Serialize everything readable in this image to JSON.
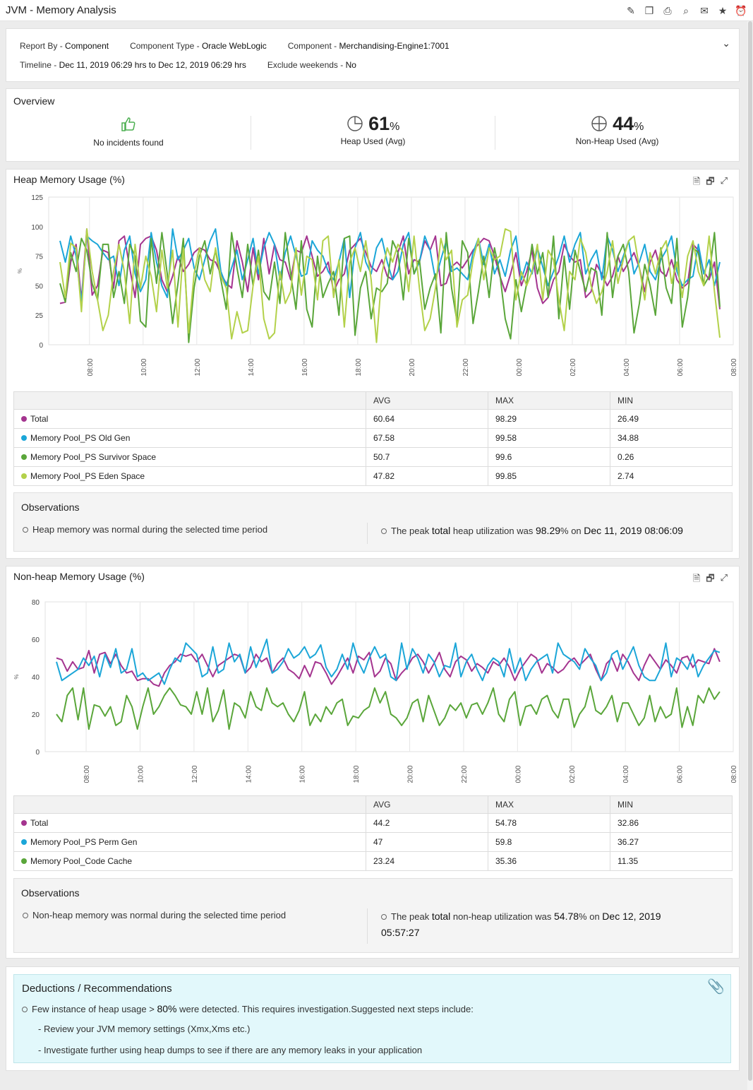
{
  "app": {
    "title": "JVM - Memory Analysis"
  },
  "toolbar_icons": [
    "edit-report-icon",
    "copy-report-icon",
    "pdf-export-icon",
    "search-report-icon",
    "mail-icon",
    "favorite-star-icon",
    "schedule-alarm-icon"
  ],
  "report": {
    "report_by_label": "Report By -",
    "report_by": "Component",
    "type_label": "Component Type -",
    "type": "Oracle WebLogic",
    "component_label": "Component -",
    "component": "Merchandising-Engine1:7001",
    "timeline_label": "Timeline -",
    "timeline": "Dec 11, 2019 06:29 hrs to Dec 12, 2019 06:29 hrs",
    "exclude_label": "Exclude weekends -",
    "exclude": "No"
  },
  "overview": {
    "title": "Overview",
    "incidents": "No incidents found",
    "heap_value": "61",
    "heap_unit": "%",
    "heap_label": "Heap Used (Avg)",
    "nonheap_value": "44",
    "nonheap_unit": "%",
    "nonheap_label": "Non-Heap Used (Avg)"
  },
  "colors": {
    "total": "#a4348f",
    "old_gen": "#1ba6d8",
    "survivor": "#5aa63a",
    "eden": "#b3d14a"
  },
  "heap": {
    "title": "Heap Memory Usage (%)",
    "headers": [
      "",
      "AVG",
      "MAX",
      "MIN"
    ],
    "rows": [
      {
        "name": "Total",
        "avg": "60.64",
        "max": "98.29",
        "min": "26.49"
      },
      {
        "name": "Memory Pool_PS Old Gen",
        "avg": "67.58",
        "max": "99.58",
        "min": "34.88"
      },
      {
        "name": "Memory Pool_PS Survivor Space",
        "avg": "50.7",
        "max": "99.6",
        "min": "0.26"
      },
      {
        "name": "Memory Pool_PS Eden Space",
        "avg": "47.82",
        "max": "99.85",
        "min": "2.74"
      }
    ],
    "obs_title": "Observations",
    "obs_left": "Heap memory was normal during the selected time period",
    "obs_r1": "The peak ",
    "obs_r2": "total",
    "obs_r3": " heap utilization was ",
    "obs_r4": "98.29",
    "obs_r5": "%",
    "obs_r6": " on ",
    "obs_r7": "Dec 11, 2019 08:06:09"
  },
  "nonheap": {
    "title": "Non-heap Memory Usage (%)",
    "headers": [
      "",
      "AVG",
      "MAX",
      "MIN"
    ],
    "rows": [
      {
        "name": "Total",
        "avg": "44.2",
        "max": "54.78",
        "min": "32.86"
      },
      {
        "name": "Memory Pool_PS Perm Gen",
        "avg": "47",
        "max": "59.8",
        "min": "36.27"
      },
      {
        "name": "Memory Pool_Code Cache",
        "avg": "23.24",
        "max": "35.36",
        "min": "11.35"
      }
    ],
    "obs_title": "Observations",
    "obs_left": "Non-heap memory was normal during the selected time period",
    "obs_r1": "The peak ",
    "obs_r2": "total",
    "obs_r3": " non-heap utilization was ",
    "obs_r4": "54.78",
    "obs_r5": "%",
    "obs_r6": " on ",
    "obs_r7": "Dec 12, 2019",
    "obs_r8": "05:57:27"
  },
  "deductions": {
    "title": "Deductions / Recommendations",
    "l1a": "Few instance of heap usage > ",
    "l1b": "80%",
    "l1c": " were detected. This requires investigation.Suggested next steps include:",
    "l2": "- Review your JVM memory settings (Xmx,Xms etc.)",
    "l3": "- Investigate further using heap dumps to see if there are any memory leaks in your application"
  },
  "chart_data": [
    {
      "type": "line",
      "title": "Heap Memory Usage (%)",
      "ylabel": "%",
      "ylim": [
        0,
        125
      ],
      "yticks": [
        0,
        25,
        50,
        75,
        100,
        125
      ],
      "xticks": [
        "08:00",
        "10:00",
        "12:00",
        "14:00",
        "16:00",
        "18:00",
        "20:00",
        "22:00",
        "00:00",
        "02:00",
        "04:00",
        "06:00",
        "08:00"
      ],
      "x_range_hours": [
        6.48,
        32.0
      ],
      "x_start_hours": 6.9,
      "x_step_hours": 0.2,
      "series": [
        {
          "name": "Total",
          "color": "#a4348f",
          "values": [
            35,
            36,
            70,
            85,
            38,
            98,
            42,
            50,
            80,
            78,
            48,
            88,
            92,
            65,
            40,
            85,
            90,
            92,
            80,
            55,
            45,
            58,
            75,
            62,
            68,
            78,
            82,
            80,
            72,
            70,
            60,
            52,
            48,
            88,
            70,
            45,
            82,
            55,
            90,
            60,
            85,
            72,
            70,
            55,
            80,
            78,
            92,
            75,
            58,
            62,
            70,
            45,
            55,
            60,
            80,
            85,
            90,
            78,
            66,
            62,
            72,
            58,
            55,
            78,
            92,
            60,
            72,
            70,
            88,
            80,
            92,
            50,
            52,
            66,
            70,
            65,
            72,
            80,
            85,
            90,
            88,
            75,
            58,
            45,
            60,
            78,
            50,
            62,
            80,
            48,
            35,
            40,
            55,
            62,
            85,
            75,
            70,
            72,
            40,
            45,
            68,
            60,
            50,
            58,
            75,
            62,
            70,
            78,
            65,
            45,
            70,
            80,
            62,
            58,
            72,
            55,
            48,
            52,
            85,
            80,
            62,
            55,
            70,
            30
          ]
        },
        {
          "name": "Memory Pool_PS Old Gen",
          "color": "#1ba6d8",
          "values": [
            88,
            70,
            92,
            75,
            36,
            92,
            88,
            85,
            78,
            72,
            75,
            50,
            80,
            92,
            60,
            45,
            55,
            95,
            70,
            50,
            40,
            98,
            72,
            80,
            90,
            65,
            55,
            72,
            88,
            98,
            62,
            50,
            65,
            80,
            55,
            72,
            90,
            60,
            82,
            95,
            85,
            55,
            78,
            92,
            75,
            58,
            60,
            88,
            80,
            75,
            62,
            55,
            70,
            90,
            40,
            82,
            95,
            70,
            60,
            82,
            90,
            70,
            55,
            62,
            85,
            95,
            60,
            70,
            92,
            80,
            55,
            72,
            88,
            62,
            65,
            60,
            55,
            78,
            90,
            68,
            85,
            60,
            72,
            58,
            80,
            92,
            55,
            70,
            60,
            82,
            66,
            50,
            62,
            75,
            92,
            70,
            85,
            95,
            60,
            72,
            80,
            55,
            92,
            80,
            62,
            75,
            88,
            60,
            70,
            85,
            62,
            55,
            72,
            80,
            92,
            62,
            50,
            55,
            58,
            85,
            60,
            72,
            50,
            70
          ]
        },
        {
          "name": "Memory Pool_PS Survivor Space",
          "color": "#5aa63a",
          "values": [
            52,
            36,
            78,
            62,
            90,
            80,
            52,
            38,
            85,
            85,
            40,
            62,
            35,
            85,
            75,
            20,
            15,
            90,
            52,
            95,
            60,
            18,
            52,
            90,
            2,
            48,
            75,
            88,
            60,
            80,
            55,
            30,
            95,
            65,
            40,
            85,
            50,
            80,
            45,
            38,
            70,
            35,
            95,
            60,
            30,
            88,
            30,
            15,
            75,
            40,
            52,
            62,
            25,
            90,
            92,
            8,
            48,
            62,
            22,
            48,
            45,
            52,
            88,
            78,
            38,
            90,
            60,
            72,
            30,
            48,
            60,
            10,
            95,
            48,
            20,
            88,
            78,
            18,
            45,
            75,
            40,
            82,
            60,
            22,
            5,
            55,
            28,
            52,
            85,
            60,
            78,
            40,
            92,
            22,
            75,
            30,
            80,
            62,
            45,
            65,
            62,
            25,
            95,
            40,
            75,
            85,
            62,
            10,
            35,
            68,
            50,
            25,
            82,
            48,
            35,
            90,
            15,
            40,
            82,
            78,
            50,
            58,
            95,
            32
          ]
        },
        {
          "name": "Memory Pool_PS Eden Space",
          "color": "#b3d14a",
          "values": [
            70,
            40,
            86,
            82,
            28,
            98,
            62,
            38,
            12,
            25,
            62,
            85,
            62,
            18,
            85,
            48,
            75,
            58,
            28,
            80,
            48,
            80,
            15,
            82,
            10,
            60,
            82,
            55,
            45,
            82,
            58,
            48,
            5,
            28,
            10,
            12,
            50,
            75,
            22,
            5,
            10,
            62,
            35,
            45,
            82,
            42,
            75,
            72,
            38,
            88,
            92,
            40,
            72,
            15,
            70,
            82,
            62,
            88,
            55,
            2,
            60,
            82,
            70,
            85,
            78,
            45,
            92,
            48,
            12,
            22,
            48,
            90,
            72,
            80,
            15,
            38,
            42,
            72,
            90,
            55,
            82,
            72,
            75,
            98,
            96,
            38,
            62,
            50,
            62,
            85,
            38,
            80,
            72,
            38,
            12,
            62,
            55,
            90,
            78,
            50,
            35,
            45,
            62,
            88,
            52,
            72,
            88,
            92,
            65,
            38,
            78,
            60,
            80,
            88,
            52,
            70,
            40,
            75,
            88,
            62,
            50,
            92,
            45,
            6
          ]
        }
      ]
    },
    {
      "type": "line",
      "title": "Non-heap Memory Usage (%)",
      "ylabel": "%",
      "ylim": [
        0,
        80
      ],
      "yticks": [
        0,
        20,
        40,
        60,
        80
      ],
      "xticks": [
        "08:00",
        "10:00",
        "12:00",
        "14:00",
        "16:00",
        "18:00",
        "20:00",
        "22:00",
        "00:00",
        "02:00",
        "04:00",
        "06:00",
        "08:00"
      ],
      "x_range_hours": [
        6.48,
        32.0
      ],
      "x_start_hours": 6.9,
      "x_step_hours": 0.2,
      "series": [
        {
          "name": "Total",
          "color": "#a4348f",
          "values": [
            50,
            49,
            43,
            48,
            44,
            45,
            54,
            42,
            52,
            53,
            47,
            52,
            46,
            42,
            43,
            38,
            39,
            39,
            36,
            35,
            42,
            46,
            48,
            52,
            51,
            52,
            48,
            52,
            46,
            40,
            46,
            48,
            50,
            52,
            51,
            42,
            45,
            52,
            48,
            50,
            42,
            47,
            50,
            44,
            42,
            39,
            46,
            40,
            48,
            47,
            42,
            36,
            40,
            45,
            50,
            42,
            51,
            49,
            53,
            40,
            43,
            50,
            47,
            38,
            42,
            45,
            50,
            52,
            48,
            42,
            47,
            53,
            44,
            40,
            48,
            51,
            49,
            43,
            47,
            45,
            42,
            48,
            46,
            50,
            45,
            38,
            44,
            48,
            52,
            50,
            42,
            47,
            45,
            42,
            44,
            48,
            50,
            46,
            49,
            52,
            44,
            38,
            47,
            50,
            43,
            52,
            48,
            42,
            38,
            46,
            52,
            48,
            44,
            49,
            46,
            42,
            50,
            51,
            45,
            49,
            48,
            47,
            55,
            48
          ]
        },
        {
          "name": "Memory Pool_PS Perm Gen",
          "color": "#1ba6d8",
          "values": [
            48,
            38,
            40,
            42,
            44,
            50,
            46,
            51,
            40,
            52,
            45,
            55,
            42,
            44,
            55,
            40,
            42,
            38,
            40,
            42,
            36,
            44,
            50,
            48,
            58,
            55,
            52,
            40,
            42,
            56,
            42,
            44,
            58,
            48,
            52,
            42,
            56,
            45,
            52,
            60,
            42,
            44,
            48,
            55,
            50,
            52,
            56,
            50,
            52,
            57,
            45,
            40,
            44,
            52,
            44,
            58,
            48,
            42,
            50,
            56,
            50,
            52,
            40,
            38,
            58,
            44,
            55,
            50,
            42,
            52,
            48,
            40,
            46,
            45,
            58,
            40,
            48,
            52,
            44,
            38,
            46,
            50,
            48,
            40,
            55,
            42,
            50,
            38,
            44,
            48,
            50,
            52,
            42,
            58,
            52,
            50,
            48,
            44,
            55,
            50,
            46,
            38,
            42,
            52,
            54,
            44,
            50,
            56,
            46,
            40,
            38,
            38,
            44,
            58,
            40,
            50,
            48,
            44,
            52,
            40,
            46,
            50,
            54,
            53
          ]
        },
        {
          "name": "Memory Pool_Code Cache",
          "color": "#5aa63a",
          "values": [
            20,
            16,
            30,
            34,
            17,
            34,
            12,
            25,
            24,
            19,
            24,
            14,
            16,
            30,
            24,
            12,
            24,
            34,
            20,
            24,
            30,
            34,
            30,
            25,
            24,
            20,
            32,
            20,
            34,
            16,
            22,
            33,
            12,
            26,
            24,
            18,
            32,
            24,
            22,
            34,
            26,
            24,
            26,
            20,
            16,
            22,
            32,
            14,
            20,
            16,
            24,
            20,
            26,
            28,
            14,
            19,
            18,
            22,
            24,
            34,
            26,
            32,
            20,
            18,
            14,
            18,
            26,
            28,
            16,
            30,
            22,
            14,
            18,
            25,
            22,
            26,
            18,
            25,
            26,
            20,
            26,
            34,
            20,
            16,
            28,
            32,
            14,
            24,
            25,
            20,
            28,
            30,
            22,
            18,
            28,
            28,
            13,
            20,
            24,
            35,
            22,
            20,
            24,
            30,
            16,
            26,
            26,
            20,
            14,
            18,
            30,
            16,
            24,
            18,
            20,
            34,
            13,
            24,
            14,
            30,
            26,
            34,
            28,
            32
          ]
        }
      ]
    }
  ]
}
